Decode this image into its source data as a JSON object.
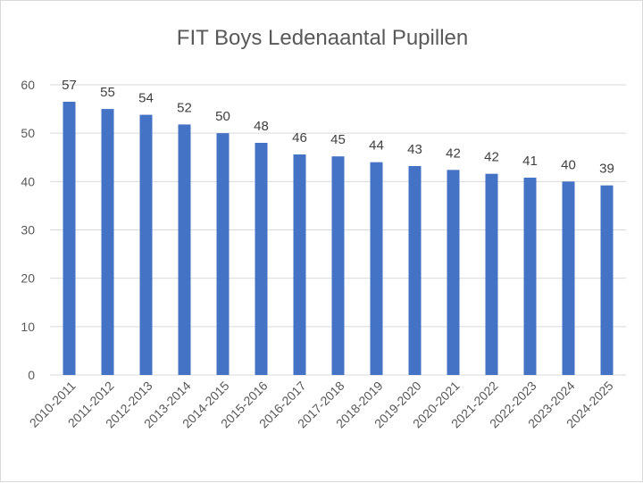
{
  "chart_data": {
    "type": "bar",
    "title": "FIT Boys Ledenaantal Pupillen",
    "categories": [
      "2010-2011",
      "2011-2012",
      "2012-2013",
      "2013-2014",
      "2014-2015",
      "2015-2016",
      "2016-2017",
      "2017-2018",
      "2018-2019",
      "2019-2020",
      "2020-2021",
      "2021-2022",
      "2022-2023",
      "2023-2024",
      "2024-2025"
    ],
    "values": [
      56.5,
      55,
      53.8,
      51.8,
      50,
      48,
      45.6,
      45.2,
      44,
      43.2,
      42.4,
      41.6,
      40.8,
      40,
      39.2
    ],
    "data_labels": [
      "57",
      "55",
      "54",
      "52",
      "50",
      "48",
      "46",
      "45",
      "44",
      "43",
      "42",
      "42",
      "41",
      "40",
      "39"
    ],
    "yticks": [
      "0",
      "10",
      "20",
      "30",
      "40",
      "50",
      "60"
    ],
    "ylim": [
      0,
      60
    ],
    "grid": true,
    "legend": "none",
    "bar_color": "#4472C4",
    "grid_color": "#d9d9d9"
  }
}
